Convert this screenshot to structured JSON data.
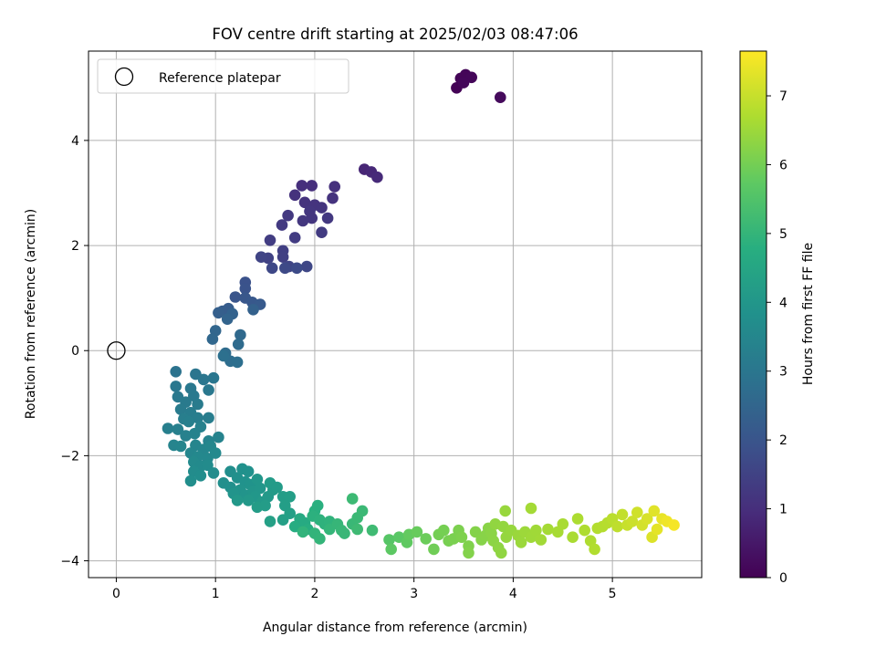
{
  "chart_data": {
    "type": "scatter",
    "title": "FOV centre drift starting at 2025/02/03 08:47:06",
    "xlabel": "Angular distance from reference (arcmin)",
    "ylabel": "Rotation from reference (arcmin)",
    "xlim": [
      -0.28,
      5.9
    ],
    "ylim": [
      -4.32,
      5.7
    ],
    "xticks": [
      "0",
      "1",
      "2",
      "3",
      "4",
      "5"
    ],
    "yticks": [
      "−4",
      "−2",
      "0",
      "2",
      "4"
    ],
    "grid": true,
    "legend": {
      "placement": "upper-left",
      "entries": [
        "Reference platepar"
      ]
    },
    "reference_point": {
      "x": 0,
      "y": 0,
      "marker": "open circle"
    },
    "colorbar": {
      "label": "Hours from first FF file",
      "range": [
        0,
        7.65
      ],
      "ticks": [
        "0",
        "1",
        "2",
        "3",
        "4",
        "5",
        "6",
        "7"
      ],
      "colormap": "viridis"
    },
    "series": [
      {
        "marker": "filled circle",
        "color_by": "hours",
        "points": [
          [
            3.43,
            5.0,
            0.05
          ],
          [
            3.47,
            5.18,
            0.08
          ],
          [
            3.52,
            5.25,
            0.1
          ],
          [
            3.58,
            5.2,
            0.12
          ],
          [
            3.5,
            5.1,
            0.14
          ],
          [
            3.87,
            4.82,
            0.2
          ],
          [
            2.5,
            3.45,
            0.8
          ],
          [
            2.57,
            3.4,
            0.85
          ],
          [
            2.63,
            3.3,
            0.9
          ],
          [
            1.87,
            3.14,
            1.0
          ],
          [
            1.97,
            3.14,
            1.02
          ],
          [
            2.2,
            3.12,
            1.05
          ],
          [
            1.8,
            2.96,
            1.08
          ],
          [
            1.9,
            2.82,
            1.1
          ],
          [
            2.18,
            2.9,
            1.12
          ],
          [
            2.0,
            2.77,
            1.14
          ],
          [
            2.07,
            2.72,
            1.16
          ],
          [
            1.95,
            2.65,
            1.18
          ],
          [
            1.97,
            2.52,
            1.2
          ],
          [
            1.88,
            2.47,
            1.22
          ],
          [
            2.13,
            2.52,
            1.24
          ],
          [
            1.73,
            2.57,
            1.27
          ],
          [
            1.67,
            2.39,
            1.3
          ],
          [
            2.07,
            2.25,
            1.32
          ],
          [
            1.8,
            2.15,
            1.35
          ],
          [
            1.55,
            2.1,
            1.38
          ],
          [
            1.68,
            1.9,
            1.42
          ],
          [
            1.68,
            1.78,
            1.46
          ],
          [
            1.53,
            1.76,
            1.5
          ],
          [
            1.46,
            1.78,
            1.54
          ],
          [
            1.74,
            1.6,
            1.58
          ],
          [
            1.92,
            1.6,
            1.62
          ],
          [
            1.57,
            1.57,
            1.66
          ],
          [
            1.7,
            1.57,
            1.7
          ],
          [
            1.82,
            1.57,
            1.74
          ],
          [
            1.3,
            1.3,
            1.9
          ],
          [
            1.3,
            1.18,
            1.95
          ],
          [
            1.2,
            1.02,
            2.0
          ],
          [
            1.3,
            1.0,
            2.05
          ],
          [
            1.37,
            0.92,
            2.1
          ],
          [
            1.45,
            0.88,
            2.15
          ],
          [
            1.13,
            0.8,
            2.2
          ],
          [
            1.07,
            0.75,
            2.25
          ],
          [
            1.03,
            0.72,
            2.3
          ],
          [
            1.38,
            0.78,
            2.35
          ],
          [
            1.17,
            0.7,
            2.4
          ],
          [
            1.12,
            0.6,
            2.45
          ],
          [
            1.0,
            0.38,
            2.5
          ],
          [
            0.97,
            0.22,
            2.55
          ],
          [
            1.25,
            0.3,
            2.6
          ],
          [
            1.23,
            0.12,
            2.65
          ],
          [
            1.1,
            -0.05,
            2.7
          ],
          [
            1.15,
            -0.2,
            2.75
          ],
          [
            1.22,
            -0.22,
            2.78
          ],
          [
            1.08,
            -0.1,
            2.8
          ],
          [
            0.6,
            -0.4,
            2.9
          ],
          [
            0.8,
            -0.45,
            2.95
          ],
          [
            0.88,
            -0.55,
            2.98
          ],
          [
            0.98,
            -0.52,
            3.0
          ],
          [
            0.6,
            -0.68,
            3.02
          ],
          [
            0.75,
            -0.72,
            3.04
          ],
          [
            0.93,
            -0.75,
            3.06
          ],
          [
            0.62,
            -0.88,
            3.08
          ],
          [
            0.78,
            -0.86,
            3.1
          ],
          [
            0.7,
            -0.98,
            3.12
          ],
          [
            0.82,
            -1.02,
            3.14
          ],
          [
            0.65,
            -1.12,
            3.16
          ],
          [
            0.75,
            -1.18,
            3.18
          ],
          [
            0.93,
            -1.28,
            3.2
          ],
          [
            0.82,
            -1.28,
            3.22
          ],
          [
            0.68,
            -1.3,
            3.24
          ],
          [
            0.73,
            -1.35,
            3.26
          ],
          [
            0.52,
            -1.48,
            3.28
          ],
          [
            0.62,
            -1.5,
            3.3
          ],
          [
            0.85,
            -1.45,
            3.32
          ],
          [
            0.7,
            -1.62,
            3.34
          ],
          [
            0.79,
            -1.58,
            3.36
          ],
          [
            0.93,
            -1.72,
            3.38
          ],
          [
            1.03,
            -1.65,
            3.4
          ],
          [
            0.58,
            -1.8,
            3.42
          ],
          [
            0.65,
            -1.82,
            3.44
          ],
          [
            0.8,
            -1.8,
            3.46
          ],
          [
            0.88,
            -1.88,
            3.48
          ],
          [
            0.75,
            -1.95,
            3.5
          ],
          [
            0.95,
            -1.82,
            3.52
          ],
          [
            0.82,
            -2.02,
            3.54
          ],
          [
            0.92,
            -2.05,
            3.56
          ],
          [
            1.0,
            -1.95,
            3.58
          ],
          [
            0.78,
            -2.12,
            3.6
          ],
          [
            0.85,
            -2.2,
            3.62
          ],
          [
            0.92,
            -2.18,
            3.64
          ],
          [
            0.78,
            -2.3,
            3.66
          ],
          [
            0.98,
            -2.33,
            3.68
          ],
          [
            0.85,
            -2.38,
            3.7
          ],
          [
            0.75,
            -2.48,
            3.72
          ],
          [
            1.15,
            -2.3,
            3.74
          ],
          [
            1.08,
            -2.52,
            3.76
          ],
          [
            1.15,
            -2.6,
            3.78
          ],
          [
            1.22,
            -2.42,
            3.8
          ],
          [
            1.27,
            -2.25,
            3.82
          ],
          [
            1.33,
            -2.3,
            3.84
          ],
          [
            1.3,
            -2.5,
            3.86
          ],
          [
            1.35,
            -2.55,
            3.88
          ],
          [
            1.25,
            -2.65,
            3.9
          ],
          [
            1.18,
            -2.72,
            3.92
          ],
          [
            1.3,
            -2.75,
            3.94
          ],
          [
            1.38,
            -2.68,
            3.96
          ],
          [
            1.45,
            -2.62,
            3.98
          ],
          [
            1.42,
            -2.45,
            4.0
          ],
          [
            1.4,
            -2.78,
            4.02
          ],
          [
            1.33,
            -2.85,
            4.04
          ],
          [
            1.22,
            -2.85,
            4.06
          ],
          [
            1.47,
            -2.88,
            4.08
          ],
          [
            1.53,
            -2.78,
            4.1
          ],
          [
            1.58,
            -2.65,
            4.12
          ],
          [
            1.55,
            -2.52,
            4.14
          ],
          [
            1.62,
            -2.6,
            4.16
          ],
          [
            1.5,
            -2.95,
            4.18
          ],
          [
            1.42,
            -2.98,
            4.2
          ],
          [
            1.68,
            -2.78,
            4.22
          ],
          [
            1.75,
            -2.78,
            4.24
          ],
          [
            1.7,
            -2.95,
            4.26
          ],
          [
            1.75,
            -3.1,
            4.28
          ],
          [
            1.68,
            -3.22,
            4.3
          ],
          [
            1.55,
            -3.25,
            4.32
          ],
          [
            1.85,
            -3.2,
            4.6
          ],
          [
            1.9,
            -3.28,
            4.65
          ],
          [
            1.8,
            -3.35,
            4.7
          ],
          [
            1.93,
            -3.4,
            4.75
          ],
          [
            2.0,
            -3.05,
            4.8
          ],
          [
            2.03,
            -2.95,
            4.82
          ],
          [
            1.98,
            -3.15,
            4.85
          ],
          [
            2.05,
            -3.22,
            4.88
          ],
          [
            2.1,
            -3.3,
            4.9
          ],
          [
            2.15,
            -3.25,
            4.92
          ],
          [
            1.88,
            -3.45,
            4.95
          ],
          [
            2.0,
            -3.48,
            4.97
          ],
          [
            2.05,
            -3.58,
            5.0
          ],
          [
            2.15,
            -3.4,
            5.02
          ],
          [
            2.23,
            -3.3,
            5.04
          ],
          [
            2.27,
            -3.42,
            5.06
          ],
          [
            2.3,
            -3.48,
            5.08
          ],
          [
            2.38,
            -3.3,
            5.1
          ],
          [
            2.43,
            -3.18,
            5.12
          ],
          [
            2.48,
            -3.05,
            5.14
          ],
          [
            2.38,
            -2.82,
            5.16
          ],
          [
            2.43,
            -3.4,
            5.18
          ],
          [
            2.58,
            -3.42,
            5.2
          ],
          [
            2.75,
            -3.6,
            5.6
          ],
          [
            2.85,
            -3.55,
            5.65
          ],
          [
            2.77,
            -3.78,
            5.7
          ],
          [
            2.93,
            -3.65,
            5.75
          ],
          [
            2.95,
            -3.5,
            5.8
          ],
          [
            3.03,
            -3.45,
            5.85
          ],
          [
            3.12,
            -3.58,
            5.9
          ],
          [
            3.2,
            -3.78,
            5.95
          ],
          [
            3.25,
            -3.5,
            6.0
          ],
          [
            3.3,
            -3.42,
            6.02
          ],
          [
            3.35,
            -3.62,
            6.05
          ],
          [
            3.4,
            -3.58,
            6.08
          ],
          [
            3.45,
            -3.42,
            6.1
          ],
          [
            3.48,
            -3.55,
            6.12
          ],
          [
            3.55,
            -3.72,
            6.15
          ],
          [
            3.55,
            -3.85,
            6.18
          ],
          [
            3.62,
            -3.45,
            6.2
          ],
          [
            3.68,
            -3.6,
            6.22
          ],
          [
            3.72,
            -3.52,
            6.24
          ],
          [
            3.75,
            -3.38,
            6.26
          ],
          [
            3.78,
            -3.48,
            6.28
          ],
          [
            3.8,
            -3.62,
            6.3
          ],
          [
            3.85,
            -3.75,
            6.32
          ],
          [
            3.88,
            -3.85,
            6.34
          ],
          [
            3.82,
            -3.3,
            6.36
          ],
          [
            3.9,
            -3.35,
            6.38
          ],
          [
            3.93,
            -3.55,
            6.4
          ],
          [
            3.98,
            -3.42,
            6.42
          ],
          [
            3.92,
            -3.05,
            6.44
          ],
          [
            4.05,
            -3.52,
            6.46
          ],
          [
            4.08,
            -3.65,
            6.48
          ],
          [
            4.12,
            -3.45,
            6.5
          ],
          [
            4.18,
            -3.55,
            6.52
          ],
          [
            4.23,
            -3.42,
            6.54
          ],
          [
            4.28,
            -3.6,
            6.56
          ],
          [
            4.18,
            -3.0,
            6.58
          ],
          [
            4.35,
            -3.4,
            6.6
          ],
          [
            4.45,
            -3.45,
            6.62
          ],
          [
            4.5,
            -3.3,
            6.64
          ],
          [
            4.6,
            -3.55,
            6.66
          ],
          [
            4.65,
            -3.2,
            6.68
          ],
          [
            4.72,
            -3.42,
            6.7
          ],
          [
            4.78,
            -3.62,
            6.72
          ],
          [
            4.82,
            -3.78,
            6.74
          ],
          [
            4.85,
            -3.38,
            6.76
          ],
          [
            4.9,
            -3.35,
            6.78
          ],
          [
            4.95,
            -3.28,
            6.8
          ],
          [
            5.0,
            -3.2,
            6.85
          ],
          [
            5.05,
            -3.35,
            6.9
          ],
          [
            5.1,
            -3.12,
            6.95
          ],
          [
            5.15,
            -3.32,
            7.0
          ],
          [
            5.2,
            -3.25,
            7.05
          ],
          [
            5.25,
            -3.08,
            7.1
          ],
          [
            5.3,
            -3.32,
            7.15
          ],
          [
            5.35,
            -3.2,
            7.2
          ],
          [
            5.4,
            -3.55,
            7.25
          ],
          [
            5.42,
            -3.05,
            7.3
          ],
          [
            5.45,
            -3.4,
            7.35
          ],
          [
            5.5,
            -3.2,
            7.4
          ],
          [
            5.55,
            -3.25,
            7.48
          ],
          [
            5.62,
            -3.32,
            7.55
          ]
        ]
      }
    ]
  }
}
